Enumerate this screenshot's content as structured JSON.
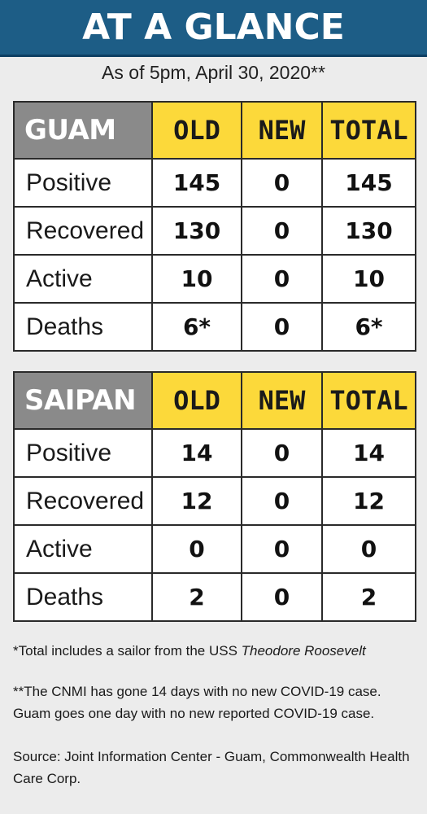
{
  "header": {
    "title": "AT A GLANCE",
    "subtitle": "As of 5pm, April 30, 2020**"
  },
  "tables": [
    {
      "place": "GUAM",
      "columns": [
        "OLD",
        "NEW",
        "TOTAL"
      ],
      "rows": [
        {
          "label": "Positive",
          "old": "145",
          "new": "0",
          "total": "145"
        },
        {
          "label": "Recovered",
          "old": "130",
          "new": "0",
          "total": "130"
        },
        {
          "label": "Active",
          "old": "10",
          "new": "0",
          "total": "10"
        },
        {
          "label": "Deaths",
          "old": "6*",
          "new": "0",
          "total": "6*"
        }
      ]
    },
    {
      "place": "SAIPAN",
      "columns": [
        "OLD",
        "NEW",
        "TOTAL"
      ],
      "rows": [
        {
          "label": "Positive",
          "old": "14",
          "new": "0",
          "total": "14"
        },
        {
          "label": "Recovered",
          "old": "12",
          "new": "0",
          "total": "12"
        },
        {
          "label": "Active",
          "old": "0",
          "new": "0",
          "total": "0"
        },
        {
          "label": "Deaths",
          "old": "2",
          "new": "0",
          "total": "2"
        }
      ]
    }
  ],
  "footnotes": {
    "note1_prefix": "*Total includes a sailor from the USS ",
    "note1_ship": "Theodore Roosevelt",
    "note2": "**The CNMI has gone 14 days with no new COVID-19 case. Guam goes one day with no new reported COVID-19 case.",
    "source": "Source: Joint Information Center - Guam, Commonwealth Health Care Corp."
  },
  "colors": {
    "banner": "#1d5d86",
    "column_header": "#fcd93a",
    "place_header": "#8a8a8a",
    "background": "#ececec"
  }
}
